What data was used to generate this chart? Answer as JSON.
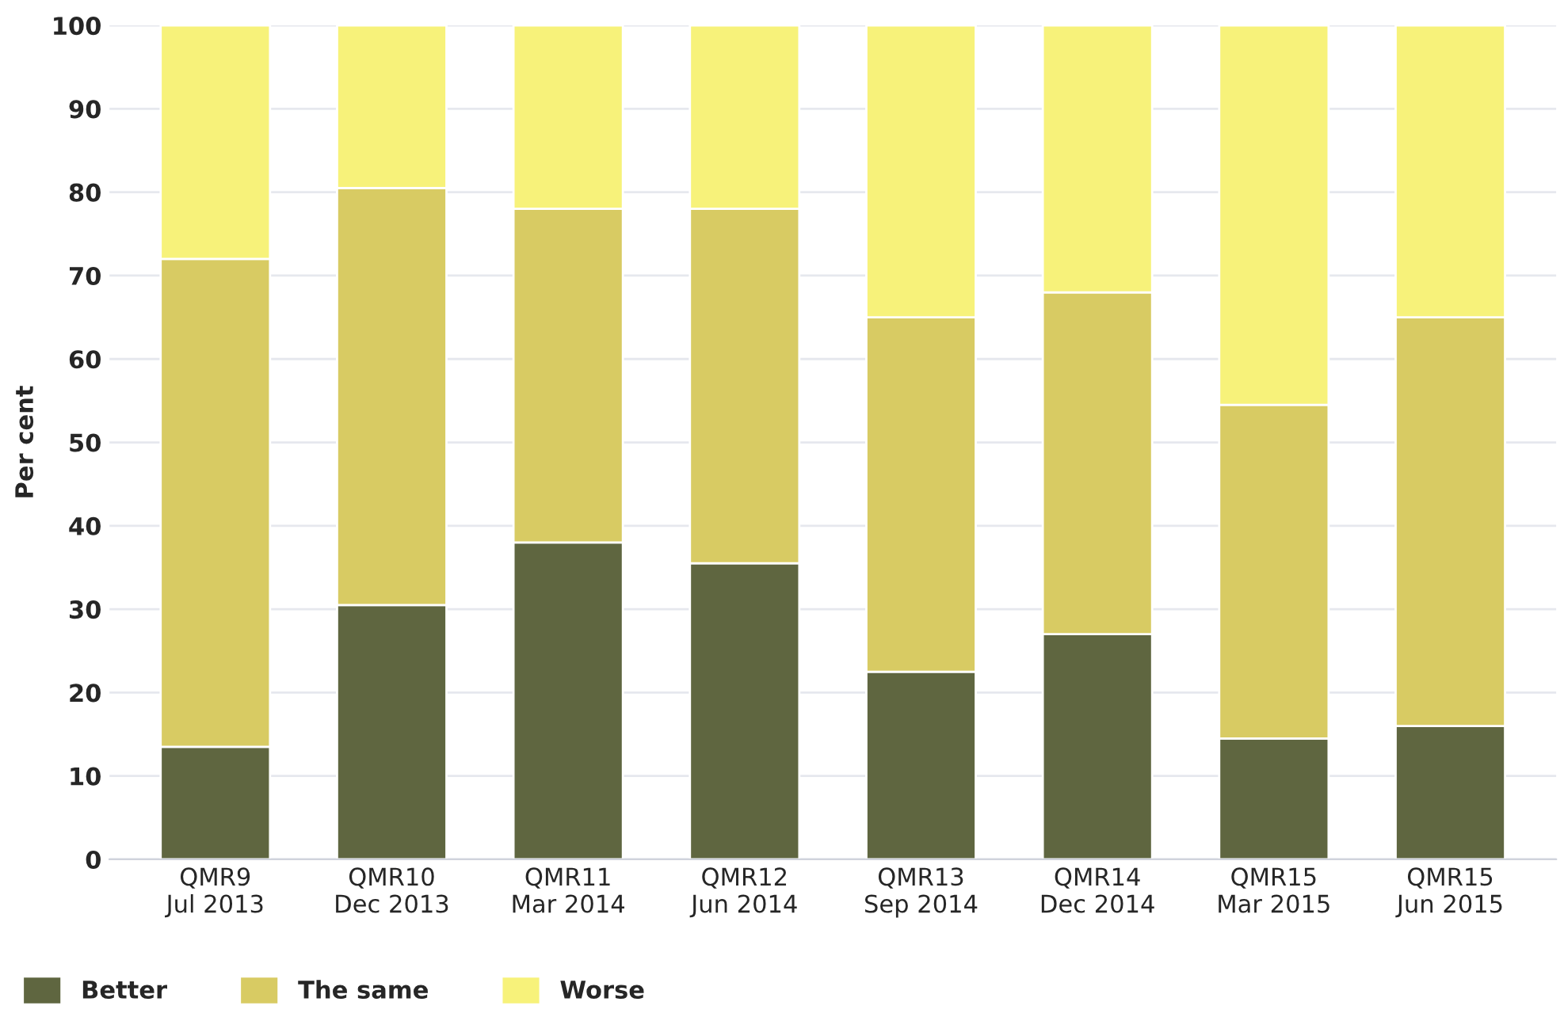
{
  "chart_data": {
    "type": "bar",
    "stacked": true,
    "ylabel": "Per cent",
    "categories": [
      "QMR9\nJul 2013",
      "QMR10\nDec 2013",
      "QMR11\nMar 2014",
      "QMR12\nJun 2014",
      "QMR13\nSep 2014",
      "QMR14\nDec 2014",
      "QMR15\nMar 2015",
      "QMR15\nJun 2015"
    ],
    "series": [
      {
        "name": "Better",
        "color": "#5f6640",
        "values": [
          13.5,
          30.5,
          38,
          35.5,
          22.5,
          27,
          14.5,
          16
        ]
      },
      {
        "name": "The same",
        "color": "#d8cb63",
        "values": [
          58.5,
          50,
          40,
          42.5,
          42.5,
          41,
          40,
          49
        ]
      },
      {
        "name": "Worse",
        "color": "#f7f27a",
        "values": [
          28,
          19.5,
          22,
          22,
          35,
          32,
          45.5,
          35
        ]
      }
    ],
    "ylim": [
      0,
      100
    ],
    "yticks": [
      0,
      10,
      20,
      30,
      40,
      50,
      60,
      70,
      80,
      90,
      100
    ],
    "grid": "y",
    "legend": "bottom left"
  }
}
